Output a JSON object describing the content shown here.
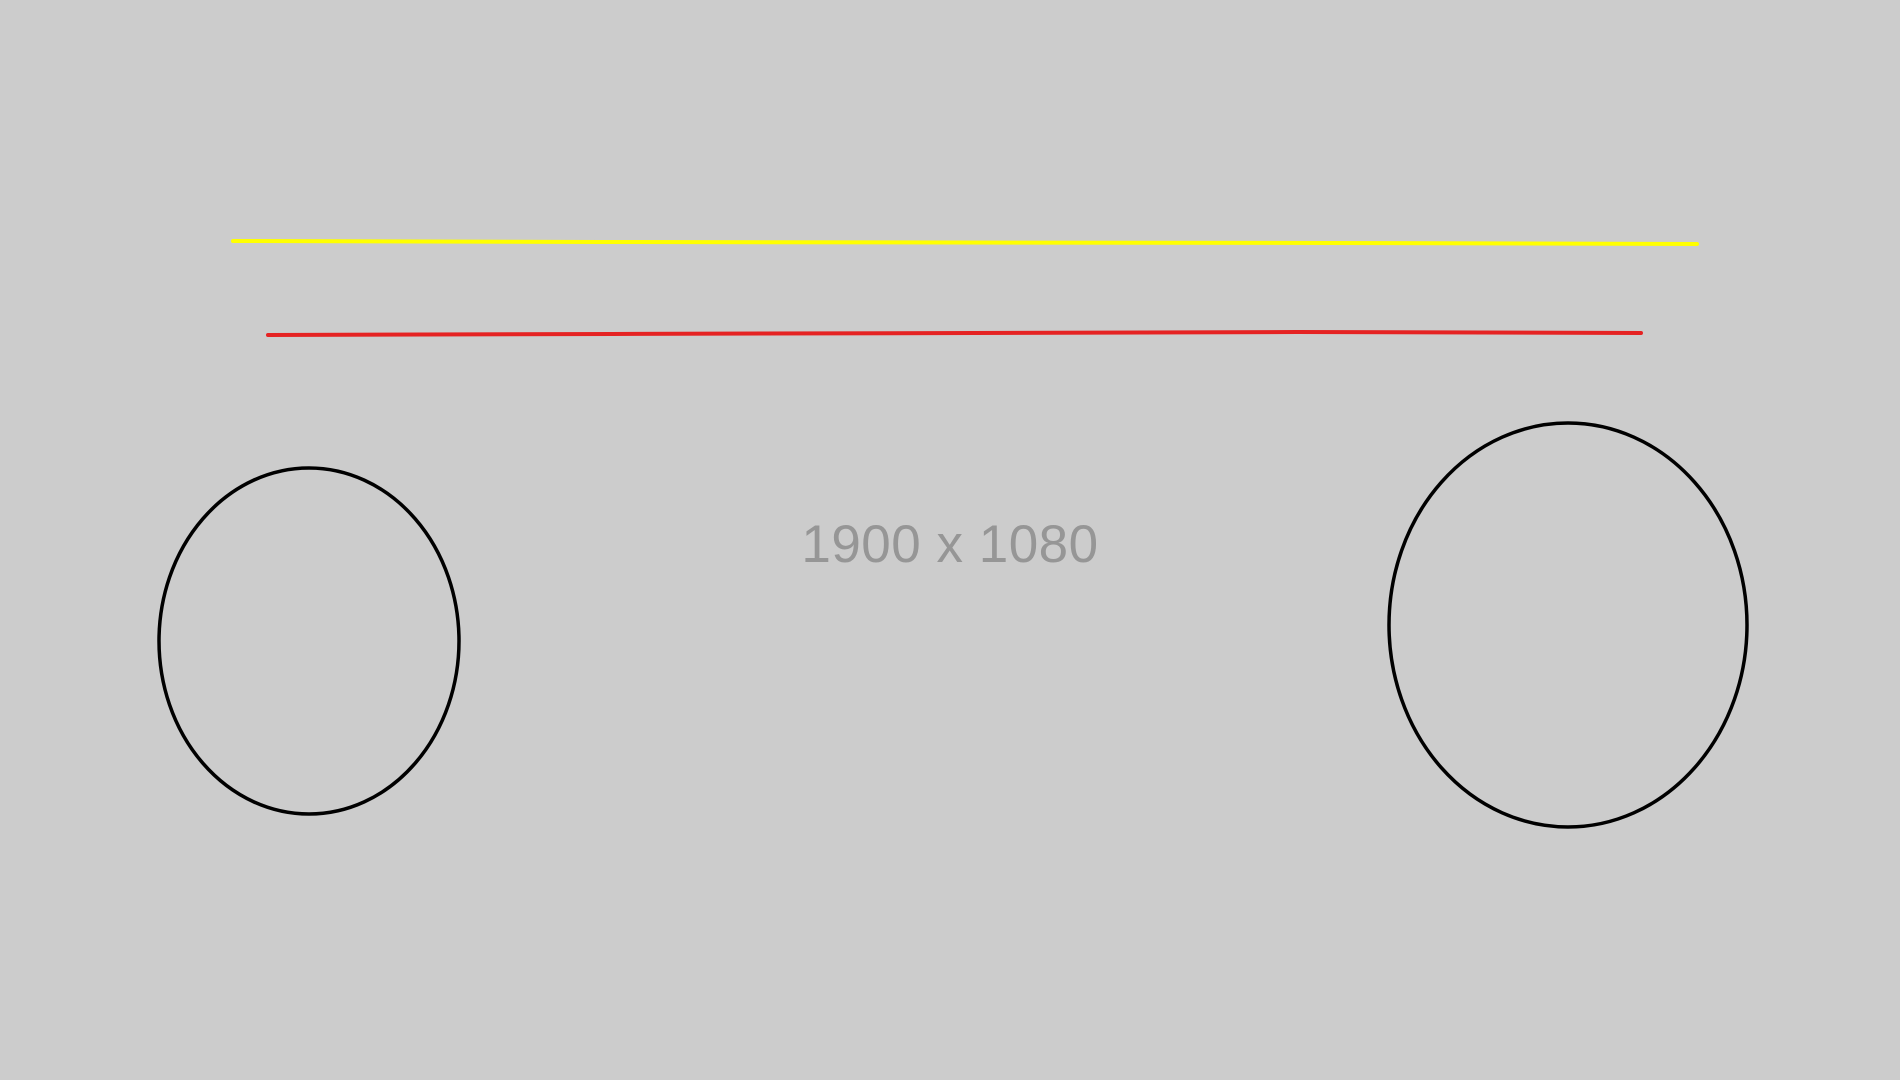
{
  "canvas": {
    "background_color": "#cccccc"
  },
  "label": {
    "text": "1900 x 1080",
    "color": "#969696"
  },
  "lines": [
    {
      "name": "yellow-line",
      "color": "#ffff00"
    },
    {
      "name": "red-line",
      "color": "#e52222"
    }
  ],
  "circles": [
    {
      "name": "left-circle",
      "stroke": "#000000"
    },
    {
      "name": "right-circle",
      "stroke": "#000000"
    }
  ]
}
